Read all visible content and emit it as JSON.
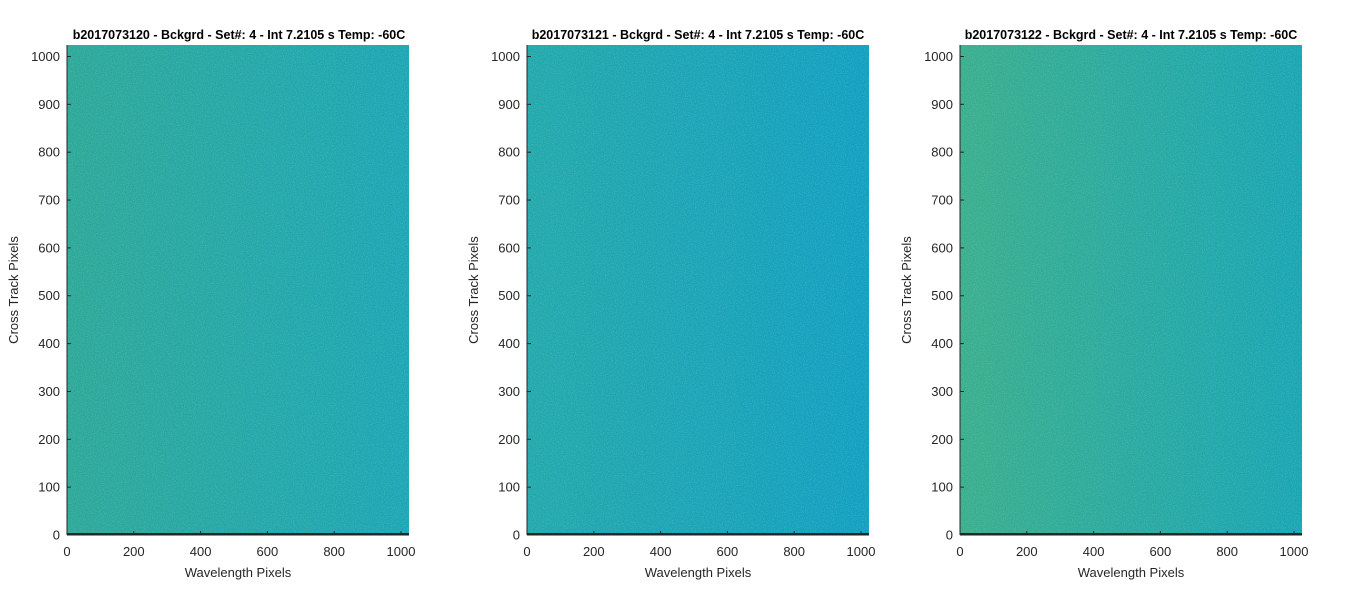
{
  "chart_data": [
    {
      "type": "heatmap",
      "title": "b2017073120 - Bckgrd - Set#: 4 - Int 7.2105 s Temp: -60C",
      "xlabel": "Wavelength Pixels",
      "ylabel": "Cross Track Pixels",
      "xlim": [
        0,
        1024
      ],
      "ylim": [
        0,
        1024
      ],
      "xticks": [
        0,
        200,
        400,
        600,
        800,
        1000
      ],
      "yticks": [
        0,
        100,
        200,
        300,
        400,
        500,
        600,
        700,
        800,
        900,
        1000
      ],
      "colors": {
        "left": "#2aa89a",
        "right": "#1aa6b7",
        "bottom_row": "#1a2a2a"
      }
    },
    {
      "type": "heatmap",
      "title": "b2017073121 - Bckgrd - Set#: 4 - Int 7.2105 s Temp: -60C",
      "xlabel": "Wavelength Pixels",
      "ylabel": "Cross Track Pixels",
      "xlim": [
        0,
        1024
      ],
      "ylim": [
        0,
        1024
      ],
      "xticks": [
        0,
        200,
        400,
        600,
        800,
        1000
      ],
      "yticks": [
        0,
        100,
        200,
        300,
        400,
        500,
        600,
        700,
        800,
        900,
        1000
      ],
      "colors": {
        "left": "#20a8ad",
        "right": "#0f9fc4",
        "bottom_row": "#1a2a2a"
      }
    },
    {
      "type": "heatmap",
      "title": "b2017073122 - Bckgrd - Set#: 4 - Int 7.2105 s Temp: -60C",
      "xlabel": "Wavelength Pixels",
      "ylabel": "Cross Track Pixels",
      "xlim": [
        0,
        1024
      ],
      "ylim": [
        0,
        1024
      ],
      "xticks": [
        0,
        200,
        400,
        600,
        800,
        1000
      ],
      "yticks": [
        0,
        100,
        200,
        300,
        400,
        500,
        600,
        700,
        800,
        900,
        1000
      ],
      "colors": {
        "left": "#38ae8e",
        "right": "#16a5b6",
        "bottom_row": "#1a2a2a"
      }
    }
  ]
}
